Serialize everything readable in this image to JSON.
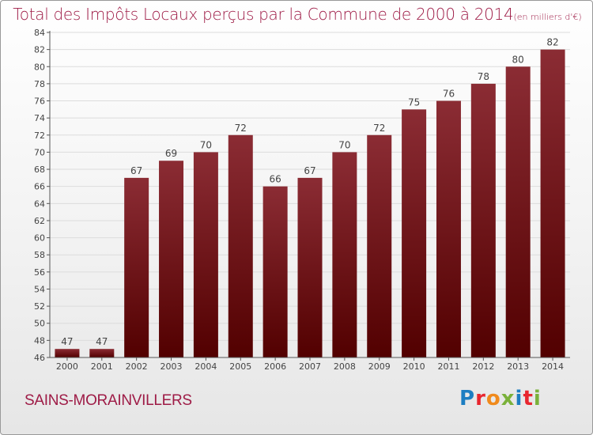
{
  "header": {
    "title": "Total des Impôts Locaux perçus par la Commune de 2000 à 2014",
    "unit": "(en milliers d'€)"
  },
  "commune": "SAINS-MORAINVILLERS",
  "logo_text": "Proxiti",
  "colors": {
    "accent": "#9e1b46",
    "bar_top": "#8b2c34",
    "bar_bottom": "#520000",
    "axis": "#555555",
    "grid": "#dcdcdc"
  },
  "chart_data": {
    "type": "bar",
    "title": "Total des Impôts Locaux perçus par la Commune de 2000 à 2014",
    "xlabel": "",
    "ylabel": "",
    "categories": [
      "2000",
      "2001",
      "2002",
      "2003",
      "2004",
      "2005",
      "2006",
      "2007",
      "2008",
      "2009",
      "2010",
      "2011",
      "2012",
      "2013",
      "2014"
    ],
    "values": [
      47,
      47,
      67,
      69,
      70,
      72,
      66,
      67,
      70,
      72,
      75,
      76,
      78,
      80,
      82
    ],
    "ylim": [
      46,
      84
    ],
    "ytick_step": 2,
    "grid": true
  }
}
